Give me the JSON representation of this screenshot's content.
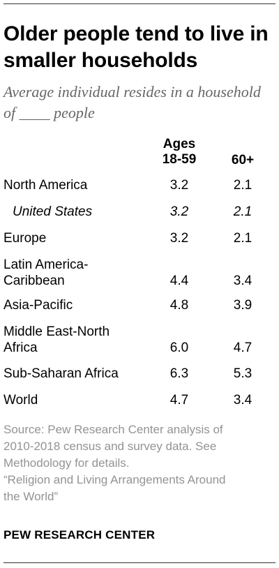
{
  "title": "Older people tend to live in smaller households",
  "subtitle": "Average individual resides in a household of ____ people",
  "chart_data": {
    "type": "table",
    "columns": [
      "Ages 18-59",
      "60+"
    ],
    "rows": [
      {
        "label": "North America",
        "values": [
          "3.2",
          "2.1"
        ],
        "italic": false
      },
      {
        "label": "United States",
        "values": [
          "3.2",
          "2.1"
        ],
        "italic": true
      },
      {
        "label": "Europe",
        "values": [
          "3.2",
          "2.1"
        ],
        "italic": false
      },
      {
        "label": "Latin America-Caribbean",
        "values": [
          "4.4",
          "3.4"
        ],
        "italic": false
      },
      {
        "label": "Asia-Pacific",
        "values": [
          "4.8",
          "3.9"
        ],
        "italic": false
      },
      {
        "label": "Middle East-North Africa",
        "values": [
          "6.0",
          "4.7"
        ],
        "italic": false
      },
      {
        "label": "Sub-Saharan Africa",
        "values": [
          "6.3",
          "5.3"
        ],
        "italic": false
      },
      {
        "label": "World",
        "values": [
          "4.7",
          "3.4"
        ],
        "italic": false
      }
    ]
  },
  "source_lines": [
    "Source: Pew Research Center analysis of",
    "2010-2018 census and survey data. See",
    "Methodology for details.",
    "“Religion and Living Arrangements Around",
    "the World”"
  ],
  "brand": "PEW RESEARCH CENTER",
  "colors": {
    "rule": "#333333",
    "muted": "#939393",
    "subtitle": "#666666"
  }
}
